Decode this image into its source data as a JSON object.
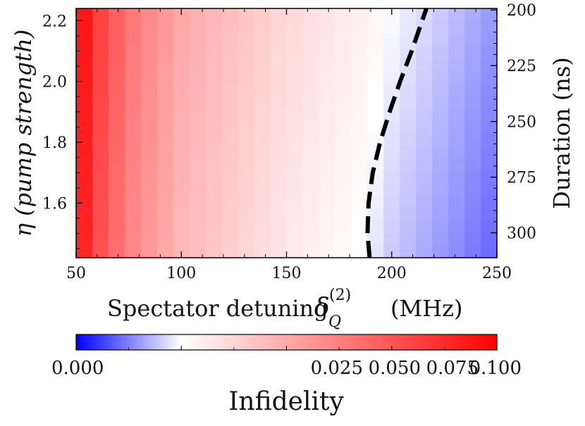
{
  "chart_data": {
    "type": "heatmap",
    "x_axis": {
      "label": "Spectator detuning",
      "symbol": "δ",
      "subscript": "Q",
      "superscript": "(2)",
      "unit": "(MHz)",
      "range": [
        50,
        250
      ],
      "ticks": [
        50,
        100,
        150,
        200,
        250
      ],
      "tick_labels": [
        "50",
        "100",
        "150",
        "200",
        "250"
      ]
    },
    "y_axis_left": {
      "label": "η (pump strength)",
      "range": [
        1.42,
        2.24
      ],
      "ticks": [
        1.6,
        1.8,
        2.0,
        2.2
      ],
      "tick_labels": [
        "1.6",
        "1.8",
        "2.0",
        "2.2"
      ]
    },
    "y_axis_right": {
      "label": "Duration (ns)",
      "ticks": [
        200,
        225,
        250,
        275,
        300
      ],
      "tick_labels": [
        "200",
        "225",
        "250",
        "275",
        "300"
      ],
      "tick_eta": [
        2.235,
        2.052,
        1.868,
        1.685,
        1.502
      ]
    },
    "heatmap": {
      "x_start": 50,
      "x_end": 250,
      "x_cells": 26,
      "y_start": 1.42,
      "y_end": 2.24,
      "y_cells": 20,
      "infidelity_at_x": [
        [
          50,
          0.098
        ],
        [
          60,
          0.08
        ],
        [
          75,
          0.063
        ],
        [
          100,
          0.048
        ],
        [
          150,
          0.034
        ],
        [
          185,
          0.027
        ],
        [
          200,
          0.022
        ],
        [
          215,
          0.019
        ],
        [
          250,
          0.012
        ]
      ],
      "eta_shift": 0.006
    },
    "contour": {
      "style": "dashed",
      "color": "#000000",
      "points": [
        [
          189.5,
          1.42
        ],
        [
          188.5,
          1.5
        ],
        [
          189,
          1.6
        ],
        [
          191,
          1.7
        ],
        [
          194.5,
          1.8
        ],
        [
          199,
          1.9
        ],
        [
          204,
          2.0
        ],
        [
          209.5,
          2.1
        ],
        [
          214.5,
          2.2
        ],
        [
          216.5,
          2.24
        ]
      ]
    },
    "colorbar": {
      "label": "Infidelity",
      "range": [
        0.0,
        0.1
      ],
      "center": 0.025,
      "low_color": "#0000ff",
      "mid_color": "#ffffff",
      "high_color": "#ff0000",
      "ticks": [
        0.0,
        0.025,
        0.05,
        0.075,
        0.1
      ],
      "tick_labels": [
        "0.000",
        "0.025",
        "0.050",
        "0.075",
        "0.100"
      ]
    }
  }
}
